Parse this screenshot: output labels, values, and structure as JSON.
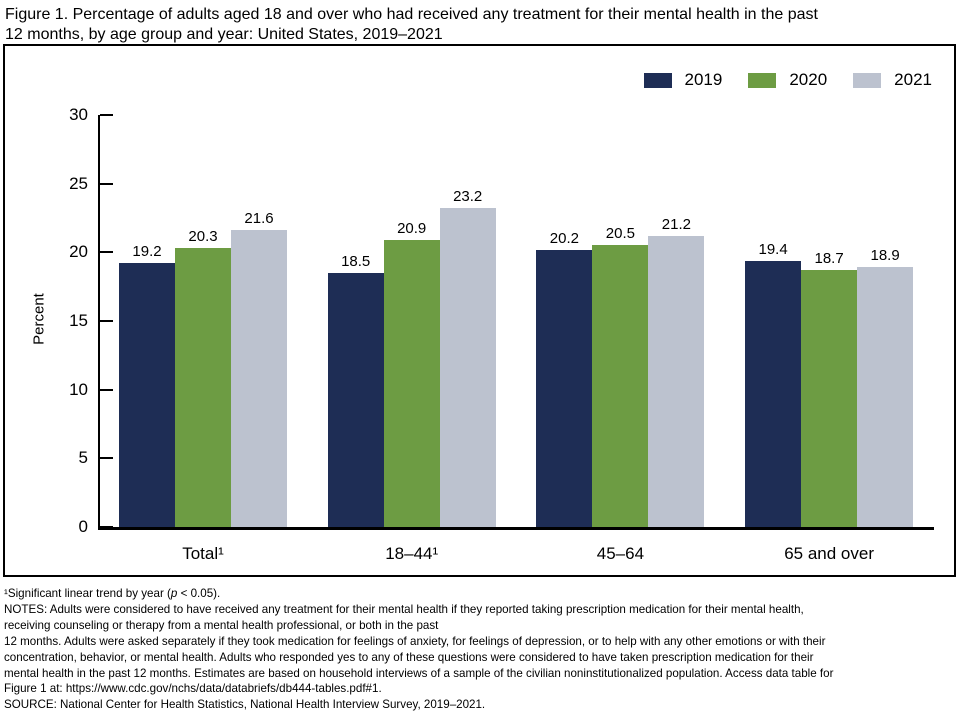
{
  "title": {
    "line1": "Figure 1. Percentage of adults aged 18 and over who had received any treatment for their mental health in the past",
    "line2": "12 months, by age group and year: United States, 2019–2021"
  },
  "chart_data": {
    "type": "bar",
    "title": "Percentage of adults aged 18 and over who had received any treatment for their mental health in the past 12 months, by age group and year: United States, 2019–2021",
    "categories": [
      "Total¹",
      "18–44¹",
      "45–64",
      "65 and over"
    ],
    "series": [
      {
        "name": "2019",
        "color": "#1e2d55",
        "values": [
          19.2,
          18.5,
          20.2,
          19.4
        ]
      },
      {
        "name": "2020",
        "color": "#6d9c43",
        "values": [
          20.3,
          20.9,
          20.5,
          18.7
        ]
      },
      {
        "name": "2021",
        "color": "#bcc2cf",
        "values": [
          21.6,
          23.2,
          21.2,
          18.9
        ]
      }
    ],
    "xlabel": "",
    "ylabel": "Percent",
    "ylim": [
      0,
      30
    ],
    "yticks": [
      0,
      5,
      10,
      15,
      20,
      25,
      30
    ],
    "grid": false,
    "legend_position": "top-right",
    "data_labels": true
  },
  "footnotes": {
    "sig": {
      "pre": "¹Significant linear trend by year (",
      "italic": "p",
      "post": " < 0.05)."
    },
    "lines": [
      "NOTES: Adults were considered to have received any treatment for their mental health if they reported taking prescription medication for their mental health,",
      "receiving counseling or therapy from a mental health professional, or both in the past",
      "12 months. Adults were asked separately if they took medication for feelings of anxiety, for feelings of depression, or to help with any other emotions or with their",
      "concentration, behavior, or mental health. Adults who responded yes to any of these questions were considered to have taken prescription medication for their",
      "mental health in the past 12 months. Estimates are based on household interviews of a sample of the civilian noninstitutionalized population. Access data table for",
      "Figure 1 at: https://www.cdc.gov/nchs/data/databriefs/db444-tables.pdf#1.",
      "SOURCE: National Center for Health Statistics, National Health Interview Survey, 2019–2021."
    ]
  }
}
